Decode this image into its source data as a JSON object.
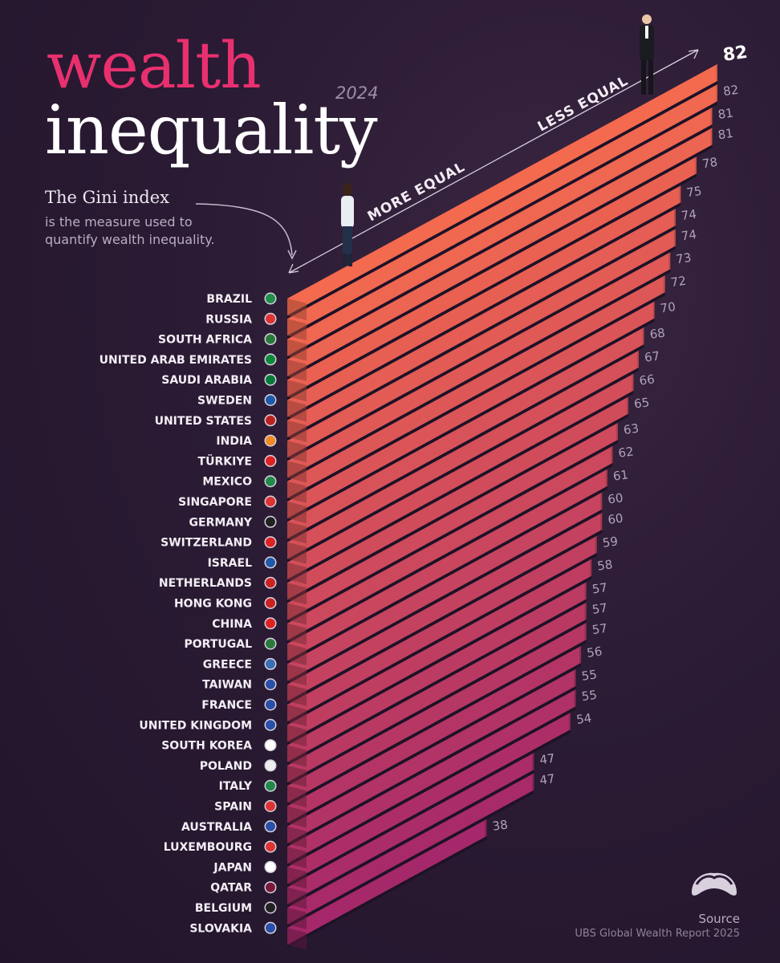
{
  "header": {
    "title_line1": "wealth",
    "title_line2": "inequality",
    "year": "2024"
  },
  "explainer": {
    "title": "The Gini index",
    "description": "is the measure used to quantify wealth inequality."
  },
  "axis": {
    "more_equal_label": "MORE EQUAL",
    "less_equal_label": "LESS EQUAL"
  },
  "source": {
    "label": "Source",
    "text": "UBS Global Wealth Report 2025"
  },
  "colors": {
    "bar_top": "#f46a4f",
    "bar_bottom": "#a5286a",
    "title_accent": "#e8306f"
  },
  "chart_data": {
    "type": "bar",
    "title": "wealth inequality",
    "subtitle": "2024",
    "metric": "The Gini index",
    "categories": [
      "BRAZIL",
      "RUSSIA",
      "SOUTH AFRICA",
      "UNITED ARAB EMIRATES",
      "SAUDI ARABIA",
      "SWEDEN",
      "UNITED STATES",
      "INDIA",
      "TÜRKIYE",
      "MEXICO",
      "SINGAPORE",
      "GERMANY",
      "SWITZERLAND",
      "ISRAEL",
      "NETHERLANDS",
      "HONG KONG",
      "CHINA",
      "PORTUGAL",
      "GREECE",
      "TAIWAN",
      "FRANCE",
      "UNITED KINGDOM",
      "SOUTH KOREA",
      "POLAND",
      "ITALY",
      "SPAIN",
      "AUSTRALIA",
      "LUXEMBOURG",
      "JAPAN",
      "QATAR",
      "BELGIUM",
      "SLOVAKIA"
    ],
    "values": [
      82,
      82,
      81,
      81,
      78,
      75,
      74,
      74,
      73,
      72,
      70,
      68,
      67,
      66,
      65,
      63,
      62,
      61,
      60,
      60,
      59,
      58,
      57,
      57,
      57,
      56,
      55,
      55,
      54,
      47,
      47,
      38
    ],
    "flag_icons": [
      "brazil-flag-icon",
      "russia-flag-icon",
      "south-africa-flag-icon",
      "uae-flag-icon",
      "saudi-arabia-flag-icon",
      "sweden-flag-icon",
      "usa-flag-icon",
      "india-flag-icon",
      "turkiye-flag-icon",
      "mexico-flag-icon",
      "singapore-flag-icon",
      "germany-flag-icon",
      "switzerland-flag-icon",
      "israel-flag-icon",
      "netherlands-flag-icon",
      "hong-kong-flag-icon",
      "china-flag-icon",
      "portugal-flag-icon",
      "greece-flag-icon",
      "taiwan-flag-icon",
      "france-flag-icon",
      "uk-flag-icon",
      "south-korea-flag-icon",
      "poland-flag-icon",
      "italy-flag-icon",
      "spain-flag-icon",
      "australia-flag-icon",
      "luxembourg-flag-icon",
      "japan-flag-icon",
      "qatar-flag-icon",
      "belgium-flag-icon",
      "slovakia-flag-icon"
    ],
    "xlabel": "",
    "ylabel": "",
    "ylim": [
      0,
      82
    ],
    "grid": false,
    "legend": "none"
  }
}
